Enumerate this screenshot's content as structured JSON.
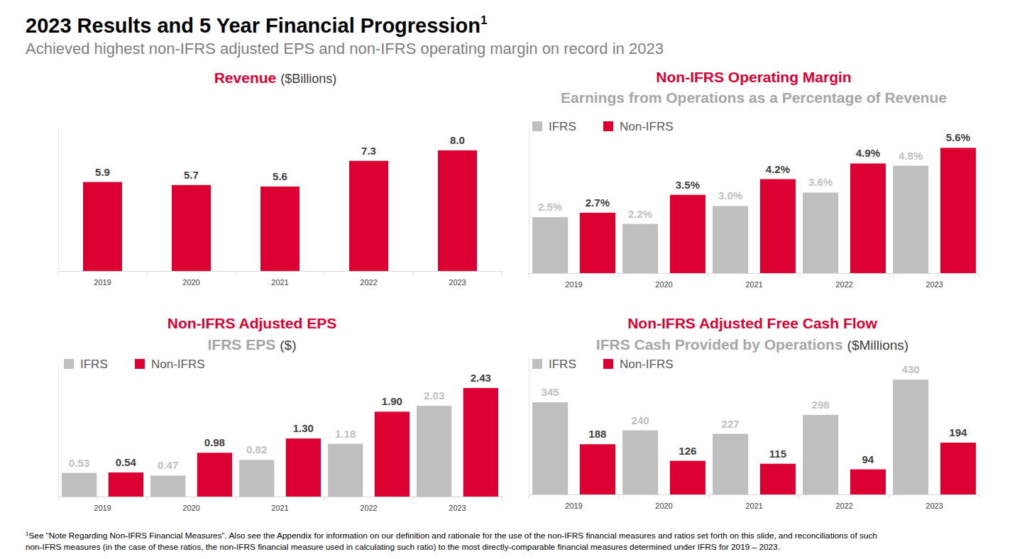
{
  "header": {
    "title": "2023 Results and 5 Year Financial Progression",
    "title_note": "1",
    "subtitle": "Achieved highest non-IFRS adjusted EPS and non-IFRS operating margin on record in 2023"
  },
  "chart_data": [
    {
      "type": "bar",
      "title": "Revenue",
      "title_suffix": "($Billions)",
      "categories": [
        "2019",
        "2020",
        "2021",
        "2022",
        "2023"
      ],
      "values": [
        5.9,
        5.7,
        5.6,
        7.3,
        8.0
      ],
      "value_labels": [
        "5.9",
        "5.7",
        "5.6",
        "7.3",
        "8.0"
      ],
      "color": "#dc0032",
      "ylim": [
        0,
        9.5
      ],
      "grid": false,
      "data_labels": true,
      "tick_labels": "x"
    },
    {
      "type": "bar",
      "title": "Non-IFRS Operating Margin",
      "subtitle": "Earnings from Operations as a Percentage of Revenue",
      "categories": [
        "2019",
        "2020",
        "2021",
        "2022",
        "2023"
      ],
      "series": [
        {
          "name": "IFRS",
          "color": "#bfbfbf",
          "values": [
            2.5,
            2.2,
            3.0,
            3.6,
            4.8
          ],
          "value_labels": [
            "2.5%",
            "2.2%",
            "3.0%",
            "3.6%",
            "4.8%"
          ]
        },
        {
          "name": "Non-IFRS",
          "color": "#dc0032",
          "values": [
            2.7,
            3.5,
            4.2,
            4.9,
            5.6
          ],
          "value_labels": [
            "2.7%",
            "3.5%",
            "4.2%",
            "4.9%",
            "5.6%"
          ]
        }
      ],
      "ylim": [
        0,
        6.5
      ],
      "grid": false,
      "legend": "top-left",
      "data_labels": true,
      "tick_labels": "x"
    },
    {
      "type": "bar",
      "title": "Non-IFRS Adjusted EPS",
      "subtitle": "IFRS EPS",
      "subtitle_suffix": "($)",
      "categories": [
        "2019",
        "2020",
        "2021",
        "2022",
        "2023"
      ],
      "series": [
        {
          "name": "IFRS",
          "color": "#bfbfbf",
          "values": [
            0.53,
            0.47,
            0.82,
            1.18,
            2.03
          ],
          "value_labels": [
            "0.53",
            "0.47",
            "0.82",
            "1.18",
            "2.03"
          ]
        },
        {
          "name": "Non-IFRS",
          "color": "#dc0032",
          "values": [
            0.54,
            0.98,
            1.3,
            1.9,
            2.43
          ],
          "value_labels": [
            "0.54",
            "0.98",
            "1.30",
            "1.90",
            "2.43"
          ]
        }
      ],
      "ylim": [
        0,
        3.0
      ],
      "grid": false,
      "legend": "top-left",
      "data_labels": true,
      "tick_labels": "x"
    },
    {
      "type": "bar",
      "title": "Non-IFRS Adjusted Free Cash Flow",
      "subtitle": "IFRS Cash Provided by Operations",
      "subtitle_suffix": "($Millions)",
      "categories": [
        "2019",
        "2020",
        "2021",
        "2022",
        "2023"
      ],
      "series": [
        {
          "name": "IFRS",
          "color": "#bfbfbf",
          "values": [
            345,
            240,
            227,
            298,
            430
          ]
        },
        {
          "name": "Non-IFRS",
          "color": "#dc0032",
          "values": [
            188,
            126,
            115,
            94,
            194
          ]
        }
      ],
      "ylim": [
        0,
        510
      ],
      "grid": false,
      "legend": "top-left",
      "data_labels": true,
      "tick_labels": "x"
    }
  ],
  "footnote": {
    "note": "1",
    "lines": [
      "See “Note Regarding Non-IFRS Financial Measures”. Also see the Appendix for information on our definition and rationale for the use of the non-IFRS financial measures and ratios set forth on this slide, and reconciliations of such",
      "non-IFRS measures (in the case of these ratios, the non-IFRS financial measure used in calculating such ratio) to the most directly-comparable financial measures determined under IFRS for 2019 – 2023."
    ]
  }
}
